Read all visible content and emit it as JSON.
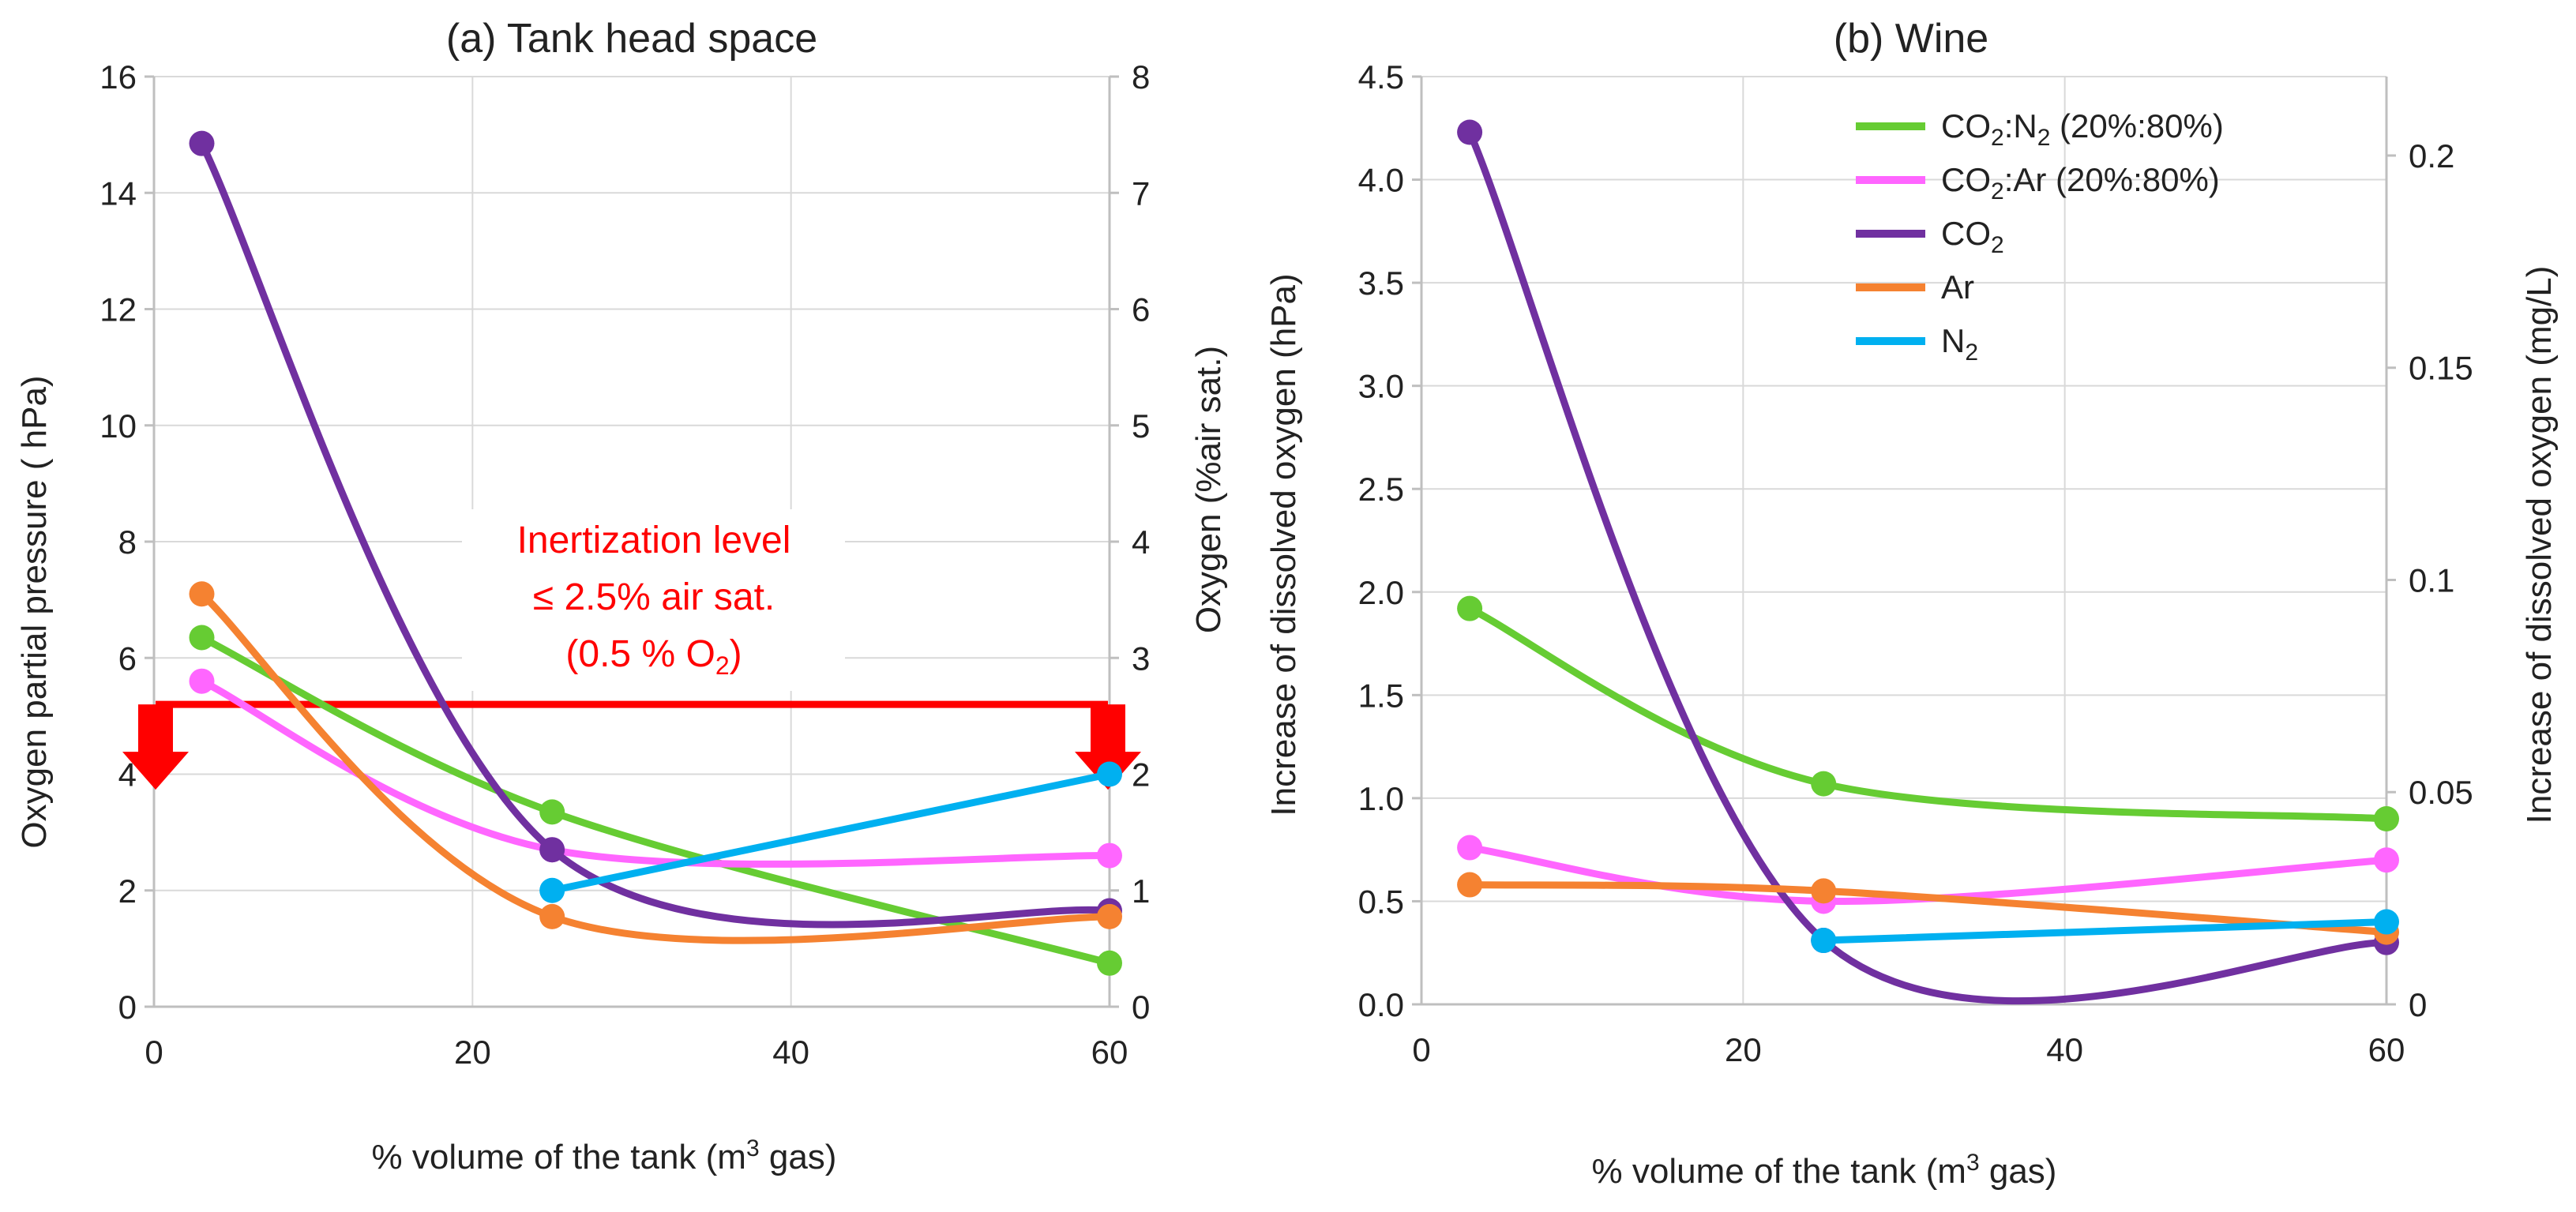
{
  "chart_data": [
    {
      "type": "line",
      "title": "(a) Tank head space",
      "xlabel": "% volume of the tank (m³ gas)",
      "ylabel": "Oxygen partial pressure ( hPa)",
      "y2label": "Oxygen (%air sat.)",
      "xlim": [
        0,
        60
      ],
      "ylim": [
        0,
        16
      ],
      "y2lim": [
        0,
        8
      ],
      "xticks": [
        "0",
        "20",
        "40",
        "60"
      ],
      "yticks": [
        "0",
        "2",
        "4",
        "6",
        "8",
        "10",
        "12",
        "14",
        "16"
      ],
      "y2ticks": [
        "0",
        "1",
        "2",
        "3",
        "4",
        "5",
        "6",
        "7",
        "8"
      ],
      "grid": true,
      "series": [
        {
          "name": "CO2:N2 (20%:80%)",
          "color": "#66cc33",
          "x": [
            3,
            25,
            60
          ],
          "y": [
            6.35,
            3.35,
            0.75
          ]
        },
        {
          "name": "CO2:Ar (20%:80%)",
          "color": "#ff66ff",
          "x": [
            3,
            25,
            60
          ],
          "y": [
            5.6,
            2.7,
            2.6
          ]
        },
        {
          "name": "CO2",
          "color": "#7030a0",
          "x": [
            3,
            25,
            60
          ],
          "y": [
            14.85,
            2.7,
            1.65
          ]
        },
        {
          "name": "Ar",
          "color": "#f58231",
          "x": [
            3,
            25,
            60
          ],
          "y": [
            7.1,
            1.55,
            1.55
          ]
        },
        {
          "name": "N2",
          "color": "#00b0f0",
          "x": [
            25,
            60
          ],
          "y": [
            2.0,
            4.0
          ]
        }
      ],
      "threshold": {
        "y": 5.2,
        "color": "#ff0000"
      },
      "annotation": {
        "line1": "Inertization level",
        "line2": "≤ 2.5% air sat.",
        "line3_pre": "(0.5 % O",
        "line3_sub": "2",
        "line3_post": ")"
      }
    },
    {
      "type": "line",
      "title": "(b) Wine",
      "xlabel": "% volume of the tank (m³ gas)",
      "ylabel": "Increase of dissolved oxygen (hPa)",
      "y2label": "Increase of dissolved oxygen (mg/L)",
      "xlim": [
        0,
        60
      ],
      "ylim": [
        0,
        4.5
      ],
      "y2lim": [
        0,
        0.2186
      ],
      "xticks": [
        "0",
        "20",
        "40",
        "60"
      ],
      "yticks": [
        "0.0",
        "0.5",
        "1.0",
        "1.5",
        "2.0",
        "2.5",
        "3.0",
        "3.5",
        "4.0",
        "4.5"
      ],
      "y2ticks": [
        {
          "v": 0,
          "label": "0"
        },
        {
          "v": 0.05,
          "label": "0.05"
        },
        {
          "v": 0.1,
          "label": "0.1"
        },
        {
          "v": 0.15,
          "label": "0.15"
        },
        {
          "v": 0.2,
          "label": "0.2"
        }
      ],
      "grid": true,
      "series": [
        {
          "name": "CO2:N2 (20%:80%)",
          "color": "#66cc33",
          "x": [
            3,
            25,
            60
          ],
          "y": [
            1.92,
            1.07,
            0.9
          ]
        },
        {
          "name": "CO2:Ar (20%:80%)",
          "color": "#ff66ff",
          "x": [
            3,
            25,
            60
          ],
          "y": [
            0.76,
            0.5,
            0.7
          ]
        },
        {
          "name": "CO2",
          "color": "#7030a0",
          "x": [
            3,
            25,
            60
          ],
          "y": [
            4.23,
            0.31,
            0.3
          ]
        },
        {
          "name": "Ar",
          "color": "#f58231",
          "x": [
            3,
            25,
            60
          ],
          "y": [
            0.58,
            0.55,
            0.35
          ]
        },
        {
          "name": "N2",
          "color": "#00b0f0",
          "x": [
            25,
            60
          ],
          "y": [
            0.31,
            0.4
          ]
        }
      ],
      "legend": {
        "placement": "top-right",
        "items": [
          {
            "pre": "CO",
            "s1": "2",
            "mid": ":N",
            "s2": "2",
            "post": " (20%:80%)",
            "color": "#66cc33"
          },
          {
            "pre": "CO",
            "s1": "2",
            "mid": ":Ar (20%:80%)",
            "s2": "",
            "post": "",
            "color": "#ff66ff"
          },
          {
            "pre": "CO",
            "s1": "2",
            "mid": "",
            "s2": "",
            "post": "",
            "color": "#7030a0"
          },
          {
            "pre": "Ar",
            "s1": "",
            "mid": "",
            "s2": "",
            "post": "",
            "color": "#f58231"
          },
          {
            "pre": "N",
            "s1": "2",
            "mid": "",
            "s2": "",
            "post": "",
            "color": "#00b0f0"
          }
        ]
      }
    }
  ]
}
